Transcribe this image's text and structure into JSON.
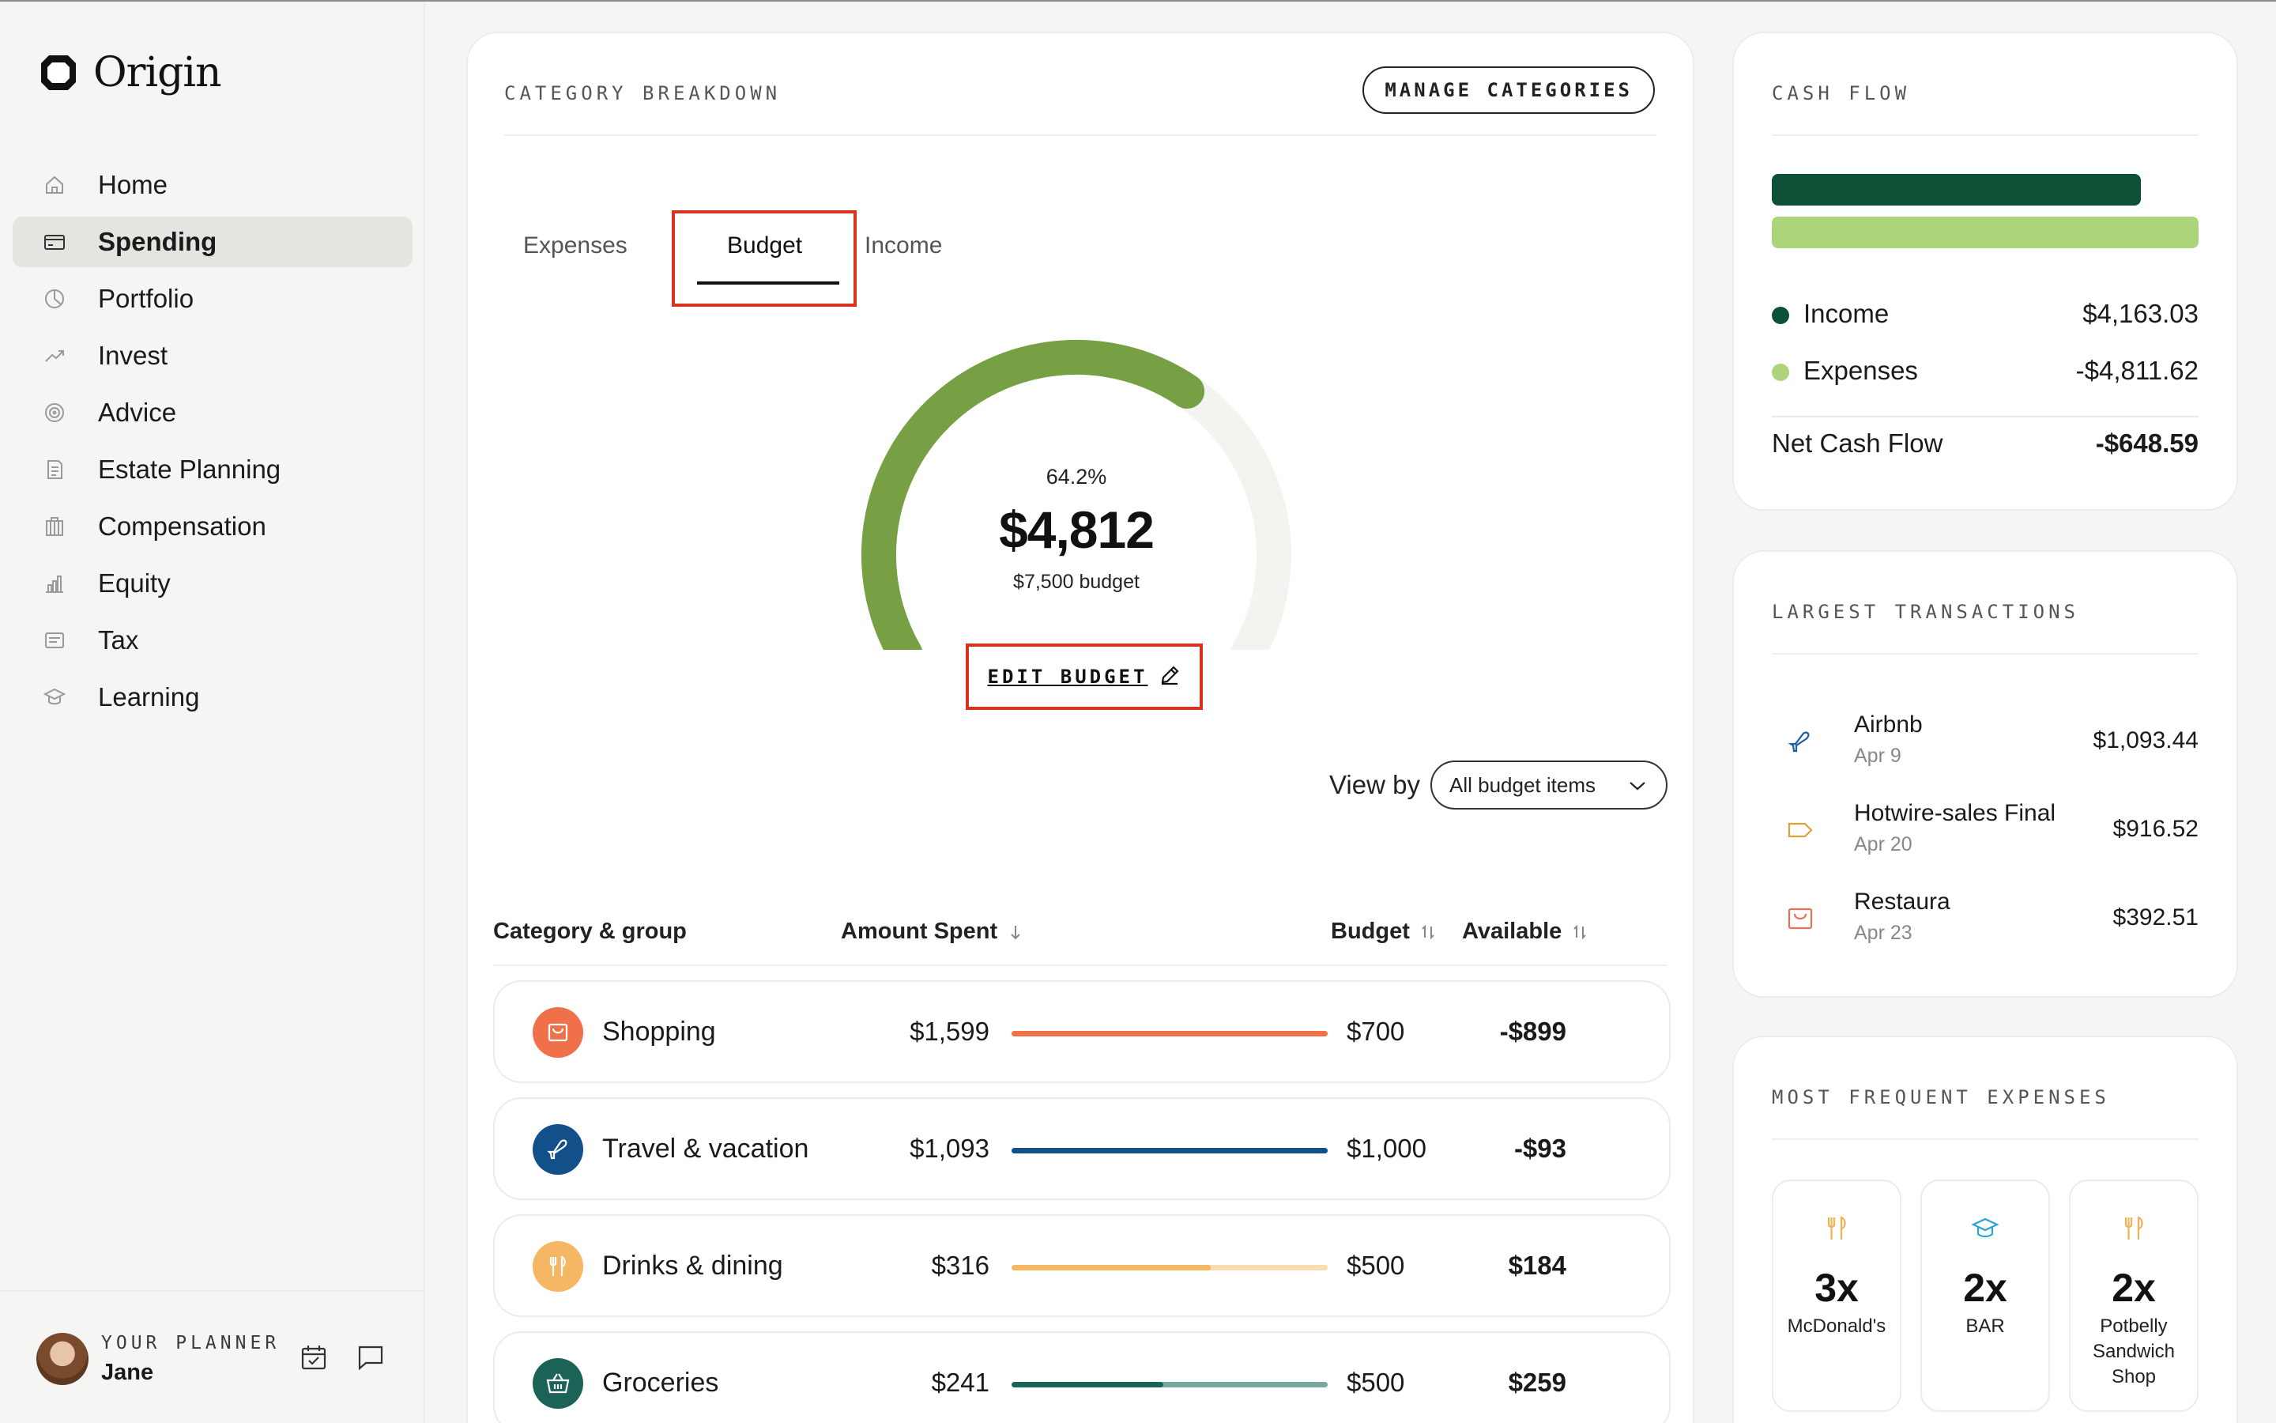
{
  "app": {
    "name": "Origin"
  },
  "sidebar": {
    "items": [
      {
        "label": "Home",
        "icon": "home-icon",
        "active": false
      },
      {
        "label": "Spending",
        "icon": "card-icon",
        "active": true
      },
      {
        "label": "Portfolio",
        "icon": "pie-icon",
        "active": false
      },
      {
        "label": "Invest",
        "icon": "trend-icon",
        "active": false
      },
      {
        "label": "Advice",
        "icon": "target-icon",
        "active": false
      },
      {
        "label": "Estate Planning",
        "icon": "document-icon",
        "active": false
      },
      {
        "label": "Compensation",
        "icon": "building-icon",
        "active": false
      },
      {
        "label": "Equity",
        "icon": "bars-icon",
        "active": false
      },
      {
        "label": "Tax",
        "icon": "receipt-icon",
        "active": false
      },
      {
        "label": "Learning",
        "icon": "graduation-icon",
        "active": false
      }
    ],
    "planner": {
      "caption": "YOUR PLANNER",
      "name": "Jane"
    }
  },
  "category_breakdown": {
    "title": "CATEGORY BREAKDOWN",
    "manage_label": "MANAGE CATEGORIES",
    "tabs": {
      "expenses": "Expenses",
      "budget": "Budget",
      "income": "Income"
    },
    "gauge": {
      "percent_label": "64.2%",
      "percent": 64.2,
      "amount": "$4,812",
      "budget_label": "$7,500 budget",
      "color": "#76a043",
      "track_color": "#f3f3f0"
    },
    "edit_label": "EDIT BUDGET",
    "view_by": {
      "label": "View by",
      "selected": "All budget items"
    },
    "columns": {
      "category": "Category & group",
      "spent": "Amount Spent",
      "budget": "Budget",
      "available": "Available"
    },
    "rows": [
      {
        "name": "Shopping",
        "spent": "$1,599",
        "budget": "$700",
        "available": "-$899",
        "icon": "bag-icon",
        "color": "#f0704a",
        "track": "#f0704a",
        "fill_pct": 100
      },
      {
        "name": "Travel & vacation",
        "spent": "$1,093",
        "budget": "$1,000",
        "available": "-$93",
        "icon": "plane-icon",
        "color": "#134f88",
        "track": "#134f88",
        "fill_pct": 100
      },
      {
        "name": "Drinks & dining",
        "spent": "$316",
        "budget": "$500",
        "available": "$184",
        "icon": "utensils-icon",
        "color": "#f5b764",
        "track": "#fbdcb0",
        "fill_pct": 63
      },
      {
        "name": "Groceries",
        "spent": "$241",
        "budget": "$500",
        "available": "$259",
        "icon": "basket-icon",
        "color": "#1a6356",
        "track": "#79a8a0",
        "fill_pct": 48
      }
    ]
  },
  "cash_flow": {
    "title": "CASH FLOW",
    "income_label": "Income",
    "income": "$4,163.03",
    "income_color": "#0c5135",
    "expenses_label": "Expenses",
    "expenses": "-$4,811.62",
    "expenses_color": "#acd47a",
    "net_label": "Net Cash Flow",
    "net": "-$648.59",
    "income_ratio": 0.865
  },
  "largest_transactions": {
    "title": "LARGEST TRANSACTIONS",
    "items": [
      {
        "name": "Airbnb",
        "date": "Apr 9",
        "amount": "$1,093.44",
        "icon": "plane-icon",
        "color": "#1b5ea8"
      },
      {
        "name": "Hotwire-sales Final",
        "date": "Apr 20",
        "amount": "$916.52",
        "icon": "tag-icon",
        "color": "#d9a23a"
      },
      {
        "name": "Restaura",
        "date": "Apr 23",
        "amount": "$392.51",
        "icon": "bag-icon",
        "color": "#e8715a"
      }
    ]
  },
  "frequent_expenses": {
    "title": "MOST FREQUENT EXPENSES",
    "items": [
      {
        "count": "3x",
        "label": "McDonald's",
        "icon": "utensils-icon",
        "color": "#f2b155"
      },
      {
        "count": "2x",
        "label": "BAR",
        "icon": "graduation-icon",
        "color": "#2aa3d8"
      },
      {
        "count": "2x",
        "label": "Potbelly Sandwich Shop",
        "icon": "utensils-icon",
        "color": "#f2b155"
      }
    ]
  }
}
